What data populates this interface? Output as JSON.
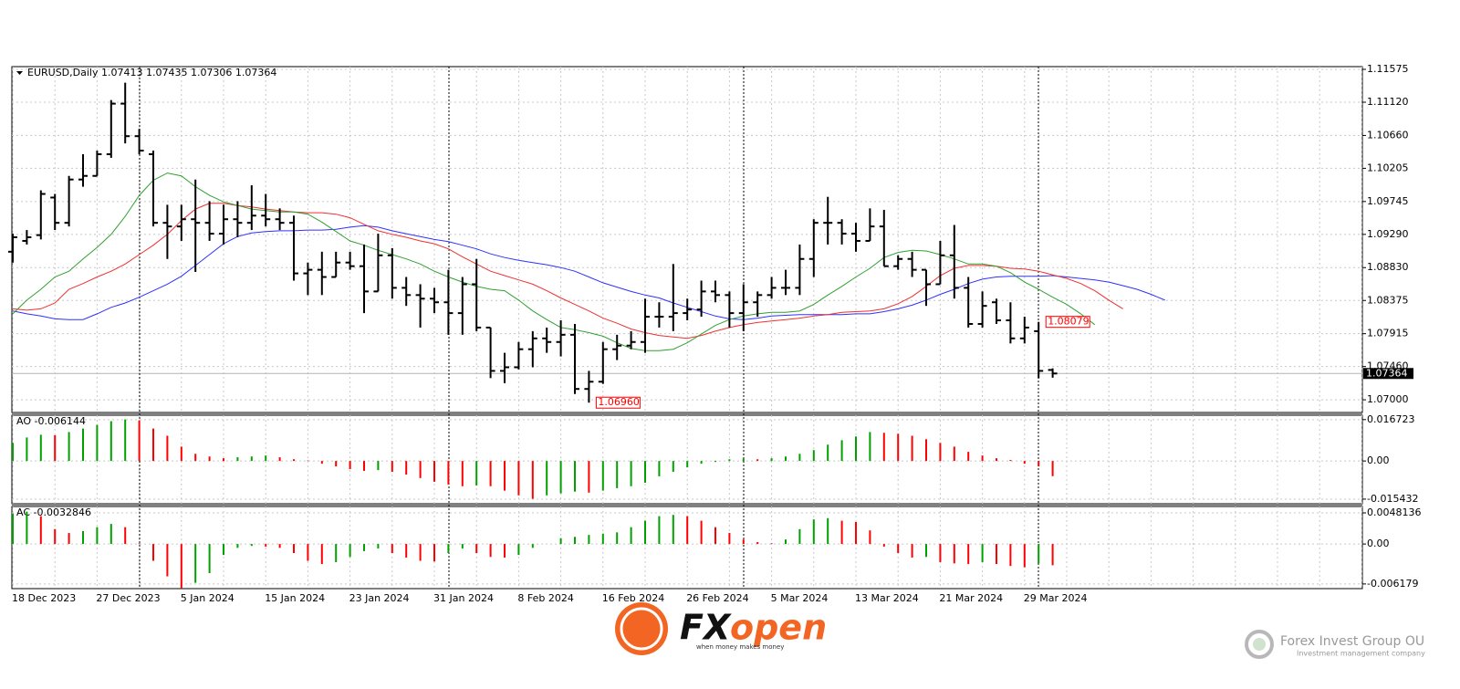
{
  "chart_data": [
    {
      "type": "ohlc",
      "title": "EURUSD,Daily  1.07413 1.07435 1.07306 1.07364",
      "color": "#000000",
      "grid": true,
      "categories": [
        "18 Dec 2023",
        null,
        null,
        null,
        null,
        null,
        "27 Dec 2023",
        null,
        null,
        null,
        null,
        null,
        "5 Jan 2024",
        null,
        null,
        null,
        null,
        null,
        "15 Jan 2024",
        null,
        null,
        null,
        null,
        null,
        "23 Jan 2024",
        null,
        null,
        null,
        null,
        null,
        "31 Jan 2024",
        null,
        null,
        null,
        null,
        null,
        "8 Feb 2024",
        null,
        null,
        null,
        null,
        null,
        "16 Feb 2024",
        null,
        null,
        null,
        null,
        null,
        "26 Feb 2024",
        null,
        null,
        null,
        null,
        null,
        "5 Mar 2024",
        null,
        null,
        null,
        null,
        null,
        "13 Mar 2024",
        null,
        null,
        null,
        null,
        null,
        "21 Mar 2024",
        null,
        null,
        null,
        null,
        null,
        "29 Mar 2024",
        null,
        null,
        null,
        null,
        null,
        null,
        null,
        null,
        null,
        null
      ],
      "open": [
        1.0905,
        1.092,
        1.0928,
        1.098,
        1.0945,
        1.1005,
        1.101,
        1.104,
        1.111,
        1.1065,
        1.104,
        1.0945,
        1.094,
        1.095,
        1.0945,
        1.093,
        1.095,
        1.0945,
        1.0955,
        1.095,
        1.0945,
        1.0875,
        1.088,
        1.087,
        1.089,
        1.0885,
        1.085,
        1.09,
        1.0855,
        1.0845,
        1.084,
        1.0835,
        1.082,
        1.086,
        1.08,
        1.074,
        1.0745,
        1.077,
        1.0785,
        1.078,
        1.079,
        1.0715,
        1.0725,
        1.077,
        1.0775,
        1.078,
        1.0815,
        1.0815,
        1.082,
        1.0825,
        1.085,
        1.0845,
        1.082,
        1.0835,
        1.0845,
        1.0855,
        1.0855,
        1.0895,
        1.0945,
        1.0945,
        1.093,
        1.092,
        1.094,
        1.0885,
        1.0895,
        1.088,
        1.086,
        1.09,
        1.0855,
        1.0805,
        1.0835,
        1.081,
        1.0785,
        1.0795,
        1.07413,
        null,
        null,
        null,
        null,
        null,
        null,
        null,
        null
      ],
      "high": [
        1.093,
        1.0935,
        1.099,
        1.0985,
        1.101,
        1.104,
        1.1045,
        1.1115,
        1.1139,
        1.1075,
        1.1045,
        1.097,
        1.097,
        1.1005,
        1.0975,
        1.097,
        1.0975,
        1.0997,
        1.0985,
        1.0965,
        1.0955,
        1.089,
        1.0905,
        1.0905,
        1.0905,
        1.0915,
        1.093,
        1.091,
        1.087,
        1.086,
        1.0855,
        1.088,
        1.087,
        1.0895,
        1.08,
        1.0765,
        1.078,
        1.0795,
        1.08,
        1.081,
        1.0805,
        1.074,
        1.078,
        1.079,
        1.0795,
        1.084,
        1.0835,
        1.0888,
        1.084,
        1.0865,
        1.0865,
        1.085,
        1.086,
        1.085,
        1.087,
        1.088,
        1.0915,
        1.095,
        1.0981,
        1.095,
        1.0945,
        1.0965,
        1.0963,
        1.09,
        1.0905,
        1.088,
        1.092,
        1.0942,
        1.087,
        1.085,
        1.084,
        1.0835,
        1.0815,
        1.08079,
        1.07435,
        null,
        null,
        null,
        null,
        null,
        null,
        null,
        null
      ],
      "low": [
        1.089,
        1.0915,
        1.0922,
        1.0935,
        1.094,
        1.0995,
        1.101,
        1.1035,
        1.1055,
        1.104,
        1.094,
        1.0895,
        1.092,
        1.0877,
        1.092,
        1.0915,
        1.0925,
        1.0935,
        1.094,
        1.0935,
        1.0865,
        1.0845,
        1.0845,
        1.087,
        1.088,
        1.082,
        1.085,
        1.084,
        1.083,
        1.08,
        1.082,
        1.079,
        1.079,
        1.0795,
        1.073,
        1.0723,
        1.0742,
        1.0745,
        1.0765,
        1.076,
        1.0708,
        1.0696,
        1.0722,
        1.0755,
        1.077,
        1.0765,
        1.08,
        1.0795,
        1.081,
        1.0815,
        1.0835,
        1.08,
        1.0795,
        1.0815,
        1.084,
        1.0845,
        1.0845,
        1.087,
        1.0915,
        1.0915,
        1.0905,
        1.092,
        1.0885,
        1.088,
        1.087,
        1.083,
        1.086,
        1.084,
        1.08,
        1.08,
        1.0805,
        1.0778,
        1.0778,
        1.073,
        1.07306,
        null,
        null,
        null,
        null,
        null,
        null,
        null,
        null
      ],
      "close": [
        1.0925,
        1.0925,
        1.0985,
        1.0945,
        1.1005,
        1.101,
        1.104,
        1.111,
        1.1065,
        1.1045,
        1.0945,
        1.094,
        1.095,
        1.0945,
        1.093,
        1.095,
        1.0945,
        1.0955,
        1.095,
        1.0945,
        1.0875,
        1.088,
        1.087,
        1.089,
        1.0885,
        1.085,
        1.09,
        1.0855,
        1.0845,
        1.084,
        1.0835,
        1.082,
        1.086,
        1.08,
        1.074,
        1.0745,
        1.077,
        1.0785,
        1.078,
        1.079,
        1.0715,
        1.0725,
        1.077,
        1.0775,
        1.078,
        1.0815,
        1.0815,
        1.082,
        1.0825,
        1.085,
        1.0845,
        1.082,
        1.0835,
        1.0845,
        1.0855,
        1.0855,
        1.0895,
        1.0945,
        1.0945,
        1.093,
        1.092,
        1.094,
        1.0885,
        1.0895,
        1.088,
        1.086,
        1.09,
        1.0855,
        1.0805,
        1.083,
        1.081,
        1.0785,
        1.08,
        1.074,
        1.07364,
        null,
        null,
        null,
        null,
        null,
        null,
        null,
        null
      ],
      "series": [
        {
          "color": "#3030ff",
          "values": [
            1.0823,
            1.0819,
            1.0816,
            1.0812,
            1.0811,
            1.0811,
            1.0819,
            1.0828,
            1.0834,
            1.0842,
            1.0851,
            1.086,
            1.0871,
            1.0886,
            1.0901,
            1.0916,
            1.0926,
            1.0931,
            1.0933,
            1.0934,
            1.0934,
            1.0935,
            1.0935,
            1.0936,
            1.0939,
            1.0941,
            1.0939,
            1.0934,
            1.093,
            1.0926,
            1.0922,
            1.0919,
            1.0914,
            1.0909,
            1.0902,
            1.0897,
            1.0893,
            1.089,
            1.0887,
            1.0883,
            1.0878,
            1.087,
            1.0862,
            1.0856,
            1.085,
            1.0845,
            1.0841,
            1.0834,
            1.0828,
            1.0822,
            1.0816,
            1.0812,
            1.0811,
            1.0813,
            1.0816,
            1.0817,
            1.0818,
            1.0818,
            1.0818,
            1.0818,
            1.0819,
            1.0819,
            1.0822,
            1.0826,
            1.0831,
            1.0838,
            1.0846,
            1.0853,
            1.0861,
            1.0867,
            1.087,
            1.0871,
            1.0871,
            1.0871,
            1.0872,
            1.087,
            1.0868,
            1.0866,
            1.0863,
            1.0858,
            1.0853,
            1.0846,
            1.0838
          ]
        },
        {
          "color": "#f03030",
          "values": [
            1.0826,
            1.0824,
            1.0826,
            1.0834,
            1.0853,
            1.0861,
            1.087,
            1.0878,
            1.0888,
            1.0901,
            1.0914,
            1.0929,
            1.0948,
            1.0964,
            1.0972,
            1.0972,
            1.0969,
            1.0967,
            1.0964,
            1.0962,
            1.096,
            1.0959,
            1.0959,
            1.0957,
            1.0952,
            1.0943,
            1.0934,
            1.0929,
            1.0925,
            1.092,
            1.0916,
            1.0909,
            1.0898,
            1.0888,
            1.0878,
            1.0872,
            1.0866,
            1.086,
            1.0851,
            1.0841,
            1.0832,
            1.0823,
            1.0813,
            1.0806,
            1.0798,
            1.0793,
            1.0789,
            1.0787,
            1.0785,
            1.0789,
            1.0795,
            1.08,
            1.0804,
            1.0807,
            1.0809,
            1.0811,
            1.0813,
            1.0816,
            1.0818,
            1.0821,
            1.0822,
            1.0823,
            1.0826,
            1.0833,
            1.0843,
            1.0857,
            1.0872,
            1.0882,
            1.0886,
            1.0886,
            1.0885,
            1.0882,
            1.0881,
            1.0878,
            1.0873,
            1.0868,
            1.0861,
            1.0851,
            1.0838,
            1.0826,
            null,
            null,
            null
          ]
        },
        {
          "color": "#30a030",
          "values": [
            1.0819,
            1.0838,
            1.0853,
            1.087,
            1.0878,
            1.0895,
            1.0911,
            1.0929,
            1.0954,
            1.0983,
            1.1004,
            1.1014,
            1.101,
            1.0995,
            1.0983,
            1.0974,
            1.0969,
            1.0964,
            1.0962,
            1.096,
            1.096,
            1.0957,
            1.0946,
            1.0933,
            1.092,
            1.0914,
            1.0907,
            1.0901,
            1.0895,
            1.0888,
            1.0878,
            1.087,
            1.0863,
            1.0857,
            1.0853,
            1.0851,
            1.0838,
            1.0823,
            1.0811,
            1.08,
            1.0797,
            1.0793,
            1.0788,
            1.0779,
            1.0771,
            1.0768,
            1.0768,
            1.077,
            1.0779,
            1.0791,
            1.0803,
            1.0811,
            1.0816,
            1.0819,
            1.0821,
            1.0821,
            1.0823,
            1.0832,
            1.0845,
            1.0857,
            1.087,
            1.0882,
            1.0897,
            1.0904,
            1.0907,
            1.0906,
            1.0901,
            1.0895,
            1.0888,
            1.0888,
            1.0885,
            1.0876,
            1.0863,
            1.0853,
            1.0842,
            1.0832,
            1.0819,
            1.0804,
            null,
            null,
            null,
            null,
            null
          ]
        }
      ],
      "annotations": [
        {
          "label": "1.06960",
          "value": 1.0696,
          "color": "#ff0000"
        },
        {
          "label": "1.08079",
          "value": 1.08079,
          "color": "#ff0000"
        }
      ],
      "ylim": [
        1.06824,
        1.11613
      ],
      "yticks": [
        1.11575,
        {
          "value": 1.1112,
          "label": "1.11120"
        },
        {
          "value": 1.1066,
          "label": "1.10660"
        },
        1.10205,
        1.09745,
        {
          "value": 1.0929,
          "label": "1.09290"
        },
        {
          "value": 1.0883,
          "label": "1.08830"
        },
        1.08375,
        1.07915,
        {
          "value": 1.0746,
          "label": "1.07460"
        },
        {
          "value": 1.07,
          "label": "1.07000"
        }
      ]
    },
    {
      "type": "histogram",
      "title": "AO -0.006144",
      "up_color": "#00a000",
      "down_color": "#ff0000",
      "grid": true,
      "values": [
        0.0073,
        0.0095,
        0.0106,
        0.0104,
        0.0117,
        0.0131,
        0.0146,
        0.0161,
        0.0168,
        0.0164,
        0.0131,
        0.0102,
        0.0058,
        0.0029,
        0.0018,
        0.0011,
        0.0015,
        0.0018,
        0.0022,
        0.0015,
        0.0007,
        0.0002,
        -0.0011,
        -0.0022,
        -0.0033,
        -0.004,
        -0.0037,
        -0.0044,
        -0.0055,
        -0.0069,
        -0.0084,
        -0.0095,
        -0.0102,
        -0.0099,
        -0.0102,
        -0.012,
        -0.0139,
        -0.0153,
        -0.0139,
        -0.0131,
        -0.0124,
        -0.0128,
        -0.012,
        -0.011,
        -0.0102,
        -0.0088,
        -0.0062,
        -0.0044,
        -0.0026,
        -0.0011,
        -0.0004,
        0.0007,
        0.0011,
        0.0007,
        0.0011,
        0.0018,
        0.0029,
        0.0044,
        0.0066,
        0.0084,
        0.0099,
        0.0117,
        0.0114,
        0.011,
        0.0102,
        0.0088,
        0.0073,
        0.0058,
        0.0037,
        0.0022,
        0.0011,
        0.0004,
        -0.0011,
        -0.0022,
        -0.006144
      ],
      "ylim": [
        -0.0173,
        0.0185
      ],
      "yticks": [
        0.016723,
        {
          "value": 0,
          "label": "0.00"
        },
        -0.015432
      ]
    },
    {
      "type": "histogram",
      "title": "AC -0.0032846",
      "up_color": "#00a000",
      "down_color": "#ff0000",
      "grid": true,
      "values": [
        0.0047,
        0.005,
        0.0043,
        0.0023,
        0.0017,
        0.002,
        0.0026,
        0.0031,
        0.0026,
        0.0001,
        -0.0026,
        -0.005,
        -0.0068,
        -0.006,
        -0.0045,
        -0.0017,
        -0.0006,
        -0.0003,
        -0.0004,
        -0.0006,
        -0.0014,
        -0.0026,
        -0.0031,
        -0.0028,
        -0.002,
        -0.0011,
        -0.0007,
        -0.0014,
        -0.0021,
        -0.0026,
        -0.0027,
        -0.0014,
        -0.0007,
        -0.0014,
        -0.002,
        -0.0021,
        -0.0017,
        -0.0006,
        0.0,
        0.0009,
        0.0011,
        0.0014,
        0.0016,
        0.0018,
        0.0026,
        0.0036,
        0.0043,
        0.0045,
        0.0043,
        0.0036,
        0.0026,
        0.0017,
        0.0007,
        0.0003,
        0.0001,
        0.0007,
        0.0023,
        0.0038,
        0.004,
        0.0036,
        0.0034,
        0.0021,
        -0.0004,
        -0.0014,
        -0.0021,
        -0.002,
        -0.0028,
        -0.003,
        -0.0031,
        -0.0028,
        -0.0031,
        -0.0034,
        -0.0036,
        -0.003,
        -0.0032846
      ],
      "ylim": [
        -0.0069,
        0.0058
      ],
      "yticks": [
        0.0048136,
        {
          "value": 0,
          "label": "0.00"
        },
        -0.006179
      ]
    }
  ],
  "brand": {
    "fx": "FX",
    "open": "open",
    "tagline": "when money makes money"
  },
  "watermark": {
    "name": "Forex Invest Group OU",
    "subtitle": "Investment management company"
  }
}
